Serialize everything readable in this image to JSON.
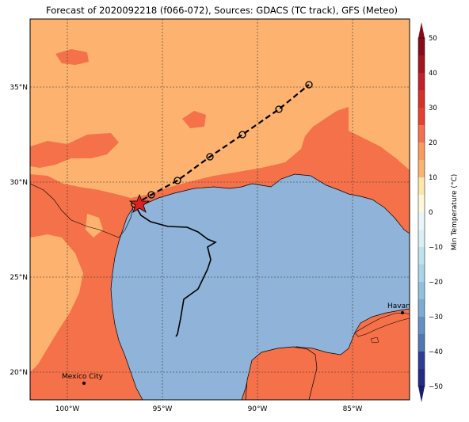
{
  "title": "Forecast of 2020092218 (f066-072), Sources: GDACS (TC track), GFS (Meteo)",
  "colorbar": {
    "label": "Min Temperature (°C)",
    "ticks": [
      "50",
      "40",
      "30",
      "20",
      "10",
      "0",
      "−10",
      "−20",
      "−30",
      "−40",
      "−50"
    ],
    "colors": [
      "#8b0a1a",
      "#c3202a",
      "#e7402e",
      "#f4714a",
      "#fdb36f",
      "#fee8a8",
      "#d8f0f4",
      "#a9d3e6",
      "#79acd2",
      "#4c78b3",
      "#2f3d97",
      "#1a1e6e"
    ]
  },
  "axes": {
    "lon_labels": [
      "100°W",
      "95°W",
      "90°W",
      "85°W"
    ],
    "lat_labels": [
      "35°N",
      "30°N",
      "25°N",
      "20°N"
    ]
  },
  "cities": [
    {
      "name": "Havana"
    },
    {
      "name": "Mexico City"
    }
  ],
  "legend_colors": {
    "land_warm": "#fdb36f",
    "land_hot": "#f4714a",
    "sea": "#8fb3d9",
    "track_past": "#000000",
    "track_forecast": "#000000",
    "storm_marker": "#e02020"
  }
}
